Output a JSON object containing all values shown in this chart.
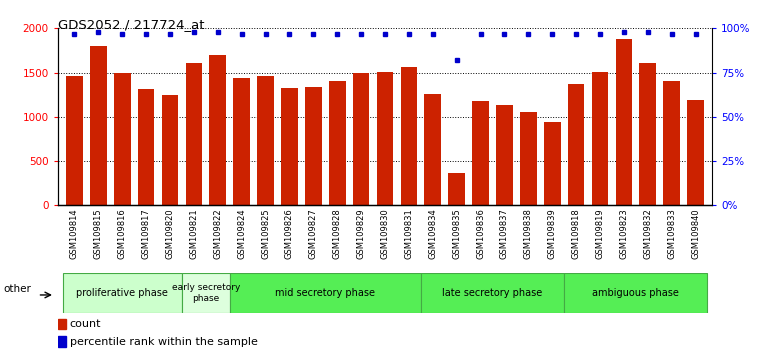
{
  "title": "GDS2052 / 217724_at",
  "samples": [
    "GSM109814",
    "GSM109815",
    "GSM109816",
    "GSM109817",
    "GSM109820",
    "GSM109821",
    "GSM109822",
    "GSM109824",
    "GSM109825",
    "GSM109826",
    "GSM109827",
    "GSM109828",
    "GSM109829",
    "GSM109830",
    "GSM109831",
    "GSM109834",
    "GSM109835",
    "GSM109836",
    "GSM109837",
    "GSM109838",
    "GSM109839",
    "GSM109818",
    "GSM109819",
    "GSM109823",
    "GSM109832",
    "GSM109833",
    "GSM109840"
  ],
  "counts": [
    1460,
    1800,
    1500,
    1310,
    1250,
    1610,
    1700,
    1440,
    1460,
    1330,
    1340,
    1400,
    1490,
    1510,
    1560,
    1260,
    370,
    1175,
    1130,
    1060,
    940,
    1370,
    1510,
    1880,
    1610,
    1400,
    1195
  ],
  "percentile": [
    97,
    98,
    97,
    97,
    97,
    98,
    98,
    97,
    97,
    97,
    97,
    97,
    97,
    97,
    97,
    97,
    82,
    97,
    97,
    97,
    97,
    97,
    97,
    98,
    98,
    97,
    97
  ],
  "phases": [
    {
      "name": "proliferative phase",
      "start": 0,
      "end": 5,
      "color": "#ccffcc"
    },
    {
      "name": "early secretory\nphase",
      "start": 5,
      "end": 7,
      "color": "#ddffdd"
    },
    {
      "name": "mid secretory phase",
      "start": 7,
      "end": 15,
      "color": "#55ee55"
    },
    {
      "name": "late secretory phase",
      "start": 15,
      "end": 21,
      "color": "#55ee55"
    },
    {
      "name": "ambiguous phase",
      "start": 21,
      "end": 27,
      "color": "#55ee55"
    }
  ],
  "bar_color": "#cc2200",
  "dot_color": "#0000cc",
  "ylim_left": [
    0,
    2000
  ],
  "ylim_right": [
    0,
    100
  ],
  "yticks_left": [
    0,
    500,
    1000,
    1500,
    2000
  ],
  "yticks_right": [
    0,
    25,
    50,
    75,
    100
  ],
  "bg_color": "#ffffff"
}
